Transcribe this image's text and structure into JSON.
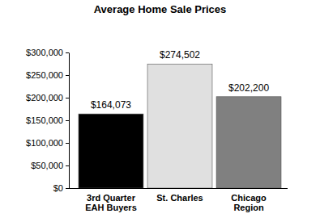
{
  "chart_data": {
    "type": "bar",
    "title": "Average Home Sale Prices",
    "categories": [
      "3rd Quarter EAH Buyers",
      "St. Charles",
      "Chicago Region"
    ],
    "values": [
      164073,
      274502,
      202200
    ],
    "value_labels": [
      "$164,073",
      "$274,502",
      "$202,200"
    ],
    "colors": [
      "#000000",
      "#e0e0e0",
      "#808080"
    ],
    "ylim": [
      0,
      300000
    ],
    "yticks": [
      {
        "value": 0,
        "label": "$0"
      },
      {
        "value": 50000,
        "label": "$50,000"
      },
      {
        "value": 100000,
        "label": "$100,000"
      },
      {
        "value": 150000,
        "label": "$150,000"
      },
      {
        "value": 200000,
        "label": "$200,000"
      },
      {
        "value": 250000,
        "label": "$250,000"
      },
      {
        "value": 300000,
        "label": "$300,000"
      }
    ],
    "data_labels": true,
    "grid": false
  }
}
